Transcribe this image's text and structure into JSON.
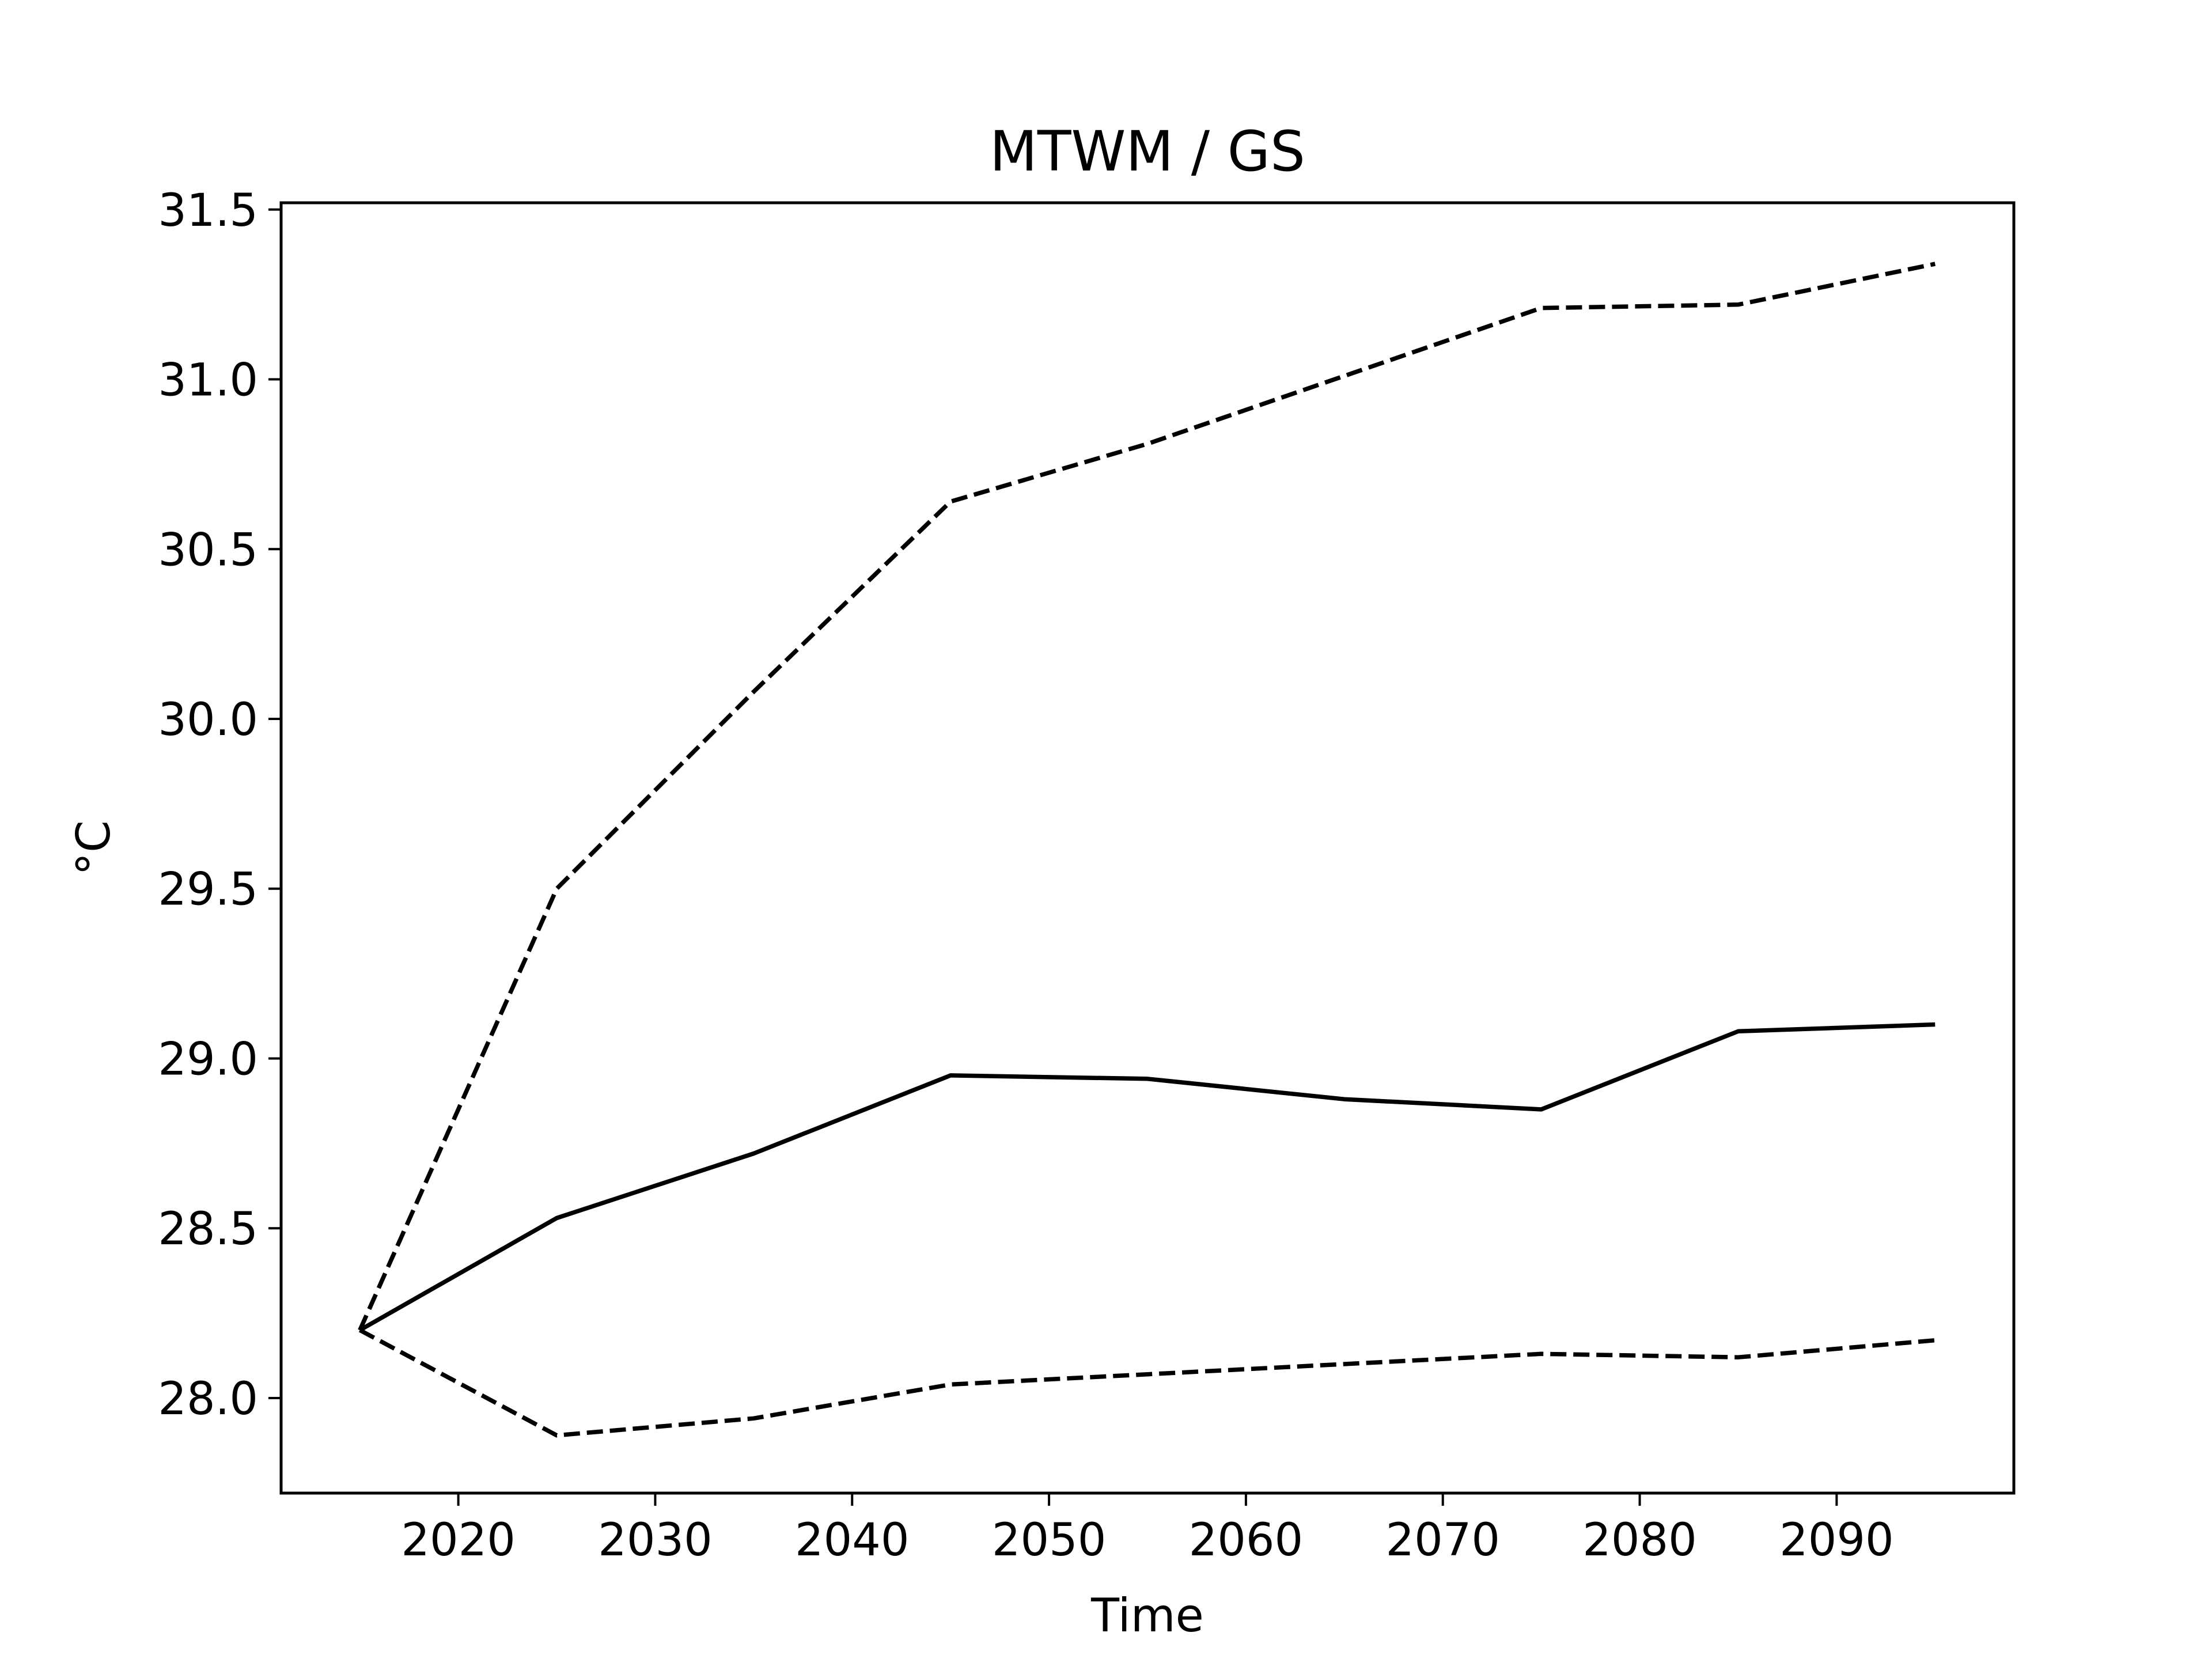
{
  "chart_data": {
    "type": "line",
    "title": "MTWM / GS",
    "xlabel": "Time",
    "ylabel": "°C",
    "xlim": [
      2011,
      2099
    ],
    "ylim": [
      27.72,
      31.52
    ],
    "xticks": [
      2020,
      2030,
      2040,
      2050,
      2060,
      2070,
      2080,
      2090
    ],
    "xtick_labels": [
      "2020",
      "2030",
      "2040",
      "2050",
      "2060",
      "2070",
      "2080",
      "2090"
    ],
    "yticks": [
      28.0,
      28.5,
      29.0,
      29.5,
      30.0,
      30.5,
      31.0,
      31.5
    ],
    "ytick_labels": [
      "28.0",
      "28.5",
      "29.0",
      "29.5",
      "30.0",
      "30.5",
      "31.0",
      "31.5"
    ],
    "grid": false,
    "line_color": "#000000",
    "x": [
      2015,
      2025,
      2035,
      2045,
      2055,
      2065,
      2075,
      2085,
      2095
    ],
    "series": [
      {
        "style": "solid",
        "values": [
          28.2,
          28.53,
          28.72,
          28.95,
          28.94,
          28.88,
          28.85,
          29.08,
          29.1
        ]
      },
      {
        "style": "dashed",
        "values": [
          28.2,
          29.5,
          30.08,
          30.64,
          30.81,
          31.01,
          31.21,
          31.22,
          31.34
        ]
      },
      {
        "style": "dashed",
        "values": [
          28.2,
          27.89,
          27.94,
          28.04,
          28.07,
          28.1,
          28.13,
          28.12,
          28.17
        ]
      }
    ]
  }
}
